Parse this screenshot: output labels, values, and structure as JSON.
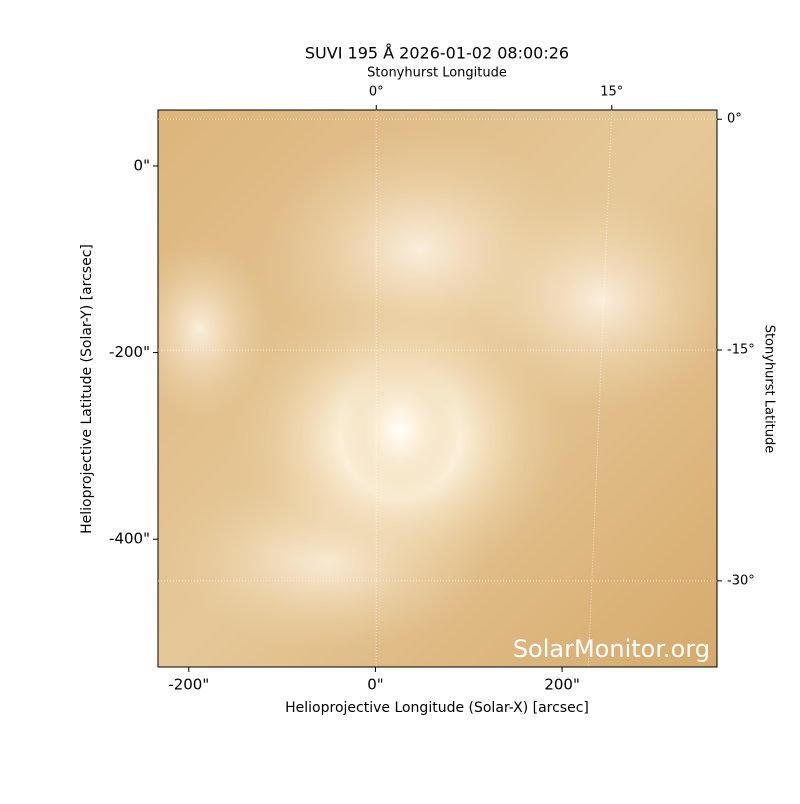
{
  "chart_data": {
    "type": "image",
    "title": "SUVI 195 Å 2026-01-02 08:00:26",
    "xlabel": "Helioprojective Longitude (Solar-X) [arcsec]",
    "ylabel": "Helioprojective Latitude (Solar-Y) [arcsec]",
    "x2label": "Stonyhurst Longitude",
    "y2label": "Stonyhurst Latitude",
    "watermark": "SolarMonitor.org",
    "xlim": [
      -233,
      366
    ],
    "ylim": [
      -537,
      60
    ],
    "xticks": [
      {
        "value": -200,
        "label": "-200\""
      },
      {
        "value": 0,
        "label": "0\""
      },
      {
        "value": 200,
        "label": "200\""
      }
    ],
    "yticks": [
      {
        "value": 0,
        "label": "0\""
      },
      {
        "value": -200,
        "label": "-200\""
      },
      {
        "value": -400,
        "label": "-400\""
      }
    ],
    "x2lim": [
      -13.9,
      21.7
    ],
    "x2ticks": [
      {
        "value": 0,
        "label": "0°"
      },
      {
        "value": 15,
        "label": "15°"
      }
    ],
    "y2lim": [
      0.6,
      -35.6
    ],
    "y2ticks": [
      {
        "value": 0,
        "label": "0°"
      },
      {
        "value": -15,
        "label": "-15°"
      },
      {
        "value": -30,
        "label": "-30°"
      }
    ],
    "grid": true
  }
}
